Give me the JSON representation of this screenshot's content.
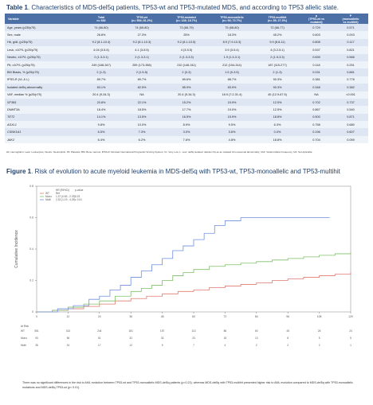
{
  "table1": {
    "caption_label": "Table 1",
    "caption_text": ". Characteristics of MDS-del5q patients, TP53-wt and TP53-mutated MDS, and according to TP53 allelic state.",
    "headers": [
      "Variable",
      "Total\nn= 682",
      "TP53-wt\n(n= 554; 81.2%)",
      "TP53-mutated\n(n= 128; 18.7%)",
      "TP53-monoallelic\n(n= 93; 72.7%)",
      "TP53-multihit\n(n= 35; 27.3%)",
      "p\n(TP53-wt vs\nmutated)",
      "P\n(monoallelic\nvs multihit)"
    ],
    "rows": [
      [
        "Age, years (p25/p75)",
        "74 (66-80)",
        "74 (65-80)",
        "73 (66-79)",
        "75 (68-80)",
        "72 (66-77)",
        "0.729",
        "0.571"
      ],
      [
        "Sex, male",
        "26.8%",
        "27.3%",
        "25%",
        "18.3%",
        "45.2%",
        "0.603",
        "0.003"
      ],
      [
        "Hb, g/dL (p25/p75)",
        "9.2 (8.1-10.4)",
        "9.2 (8.1-10.3)",
        "9.2 (8.1-10.5)",
        "8.9 (7.9-10.3)",
        "9.9 (8.8-11)",
        "0.808",
        "0.117"
      ],
      [
        "Leuk, x10⁹/L (p25/p75)",
        "4.04 (3.5-5)",
        "4.1 (3-5.5)",
        "4 (3-5.5)",
        "3.9 (3-5.4)",
        "4 (3.2-5.1)",
        "0.537",
        "0.821"
      ],
      [
        "Neutro, x10⁹/L (p25/p75)",
        "2 (1.3-3.1)",
        "2 (1.3-3.1)",
        "2 (1.3-3.3)",
        "1.9 (1.3-3.1)",
        "2 (1.5-3.3)",
        "0.839",
        "0.566"
      ],
      [
        "Plt, x10⁹/L (p25/p75)",
        "249 (168-347)",
        "259 (173-356)",
        "210 (146-311)",
        "212 (154-314)",
        "187 (115-277)",
        "0.118",
        "0.251"
      ],
      [
        "BM Blasts, % (p25/p75)",
        "2 (1-3)",
        "2 (1.5-5)",
        "2 (0-3)",
        "1.5 (0-3.5)",
        "2 (1-3)",
        "0.031",
        "0.881"
      ],
      [
        "IPSS-R (VL & L)",
        "89.7%",
        "89.7%",
        "89.6%",
        "88.7%",
        "90.3%",
        "0.381",
        "0.778"
      ],
      [
        "Isolated del5q abnormality",
        "83.1%",
        "82.5%",
        "85.9%",
        "83.9%",
        "90.3%",
        "0.348",
        "0.382"
      ],
      [
        "VAF, median % (p25/p75)",
        "20.4 (9-34.3)",
        "NA",
        "20.4 (9-34.3)",
        "18.9 (7.2-31.4)",
        "40 (12.9-67.5)",
        "NA",
        "<0.001"
      ],
      [
        "SF3B1",
        "20.8%",
        "22.1%",
        "15.2%",
        "15.9%",
        "12.5%",
        "0.702",
        "0.737"
      ],
      [
        "DNMT3A",
        "18.4%",
        "18.5%",
        "17.7%",
        "19.0%",
        "12.5%",
        "0.867",
        "0.540"
      ],
      [
        "TET2",
        "14.1%",
        "13.5%",
        "16.5%",
        "15.9%",
        "18.8%",
        "0.500",
        "0.871"
      ],
      [
        "ASXL1",
        "9.8%",
        "10.0%",
        "8.9%",
        "9.5%",
        "6.3%",
        "0.758",
        "0.680"
      ],
      [
        "CSNK1A1",
        "6.5%",
        "7.3%",
        "3.0%",
        "3.6%",
        "0.0%",
        "0.196",
        "0.607"
      ],
      [
        "JAK2",
        "6.4%",
        "6.2%",
        "7.6%",
        "4.8%",
        "18.8%",
        "0.704",
        "0.059"
      ]
    ],
    "gene_rows_from": 10,
    "footnote": "Hb, Hemoglobin; Leuk: Leukocytes; Neutro: Neutrophils; Plt: Platelets; BM: Bone marrow; IPSS-R: Revised International Prognostic Scoring System; VL: Very Low; L: Low; del5q isolated: deletion 5q as an isolated chromosomal abnormality; VAF: Variant Allele Frequency; NA: Not Aplicable."
  },
  "figure1": {
    "caption_label": "Figure 1",
    "caption_text": ". Risk of evolution to acute myeloid leukemia in MDS-del5q with TP53-wt, TP53-monoallelic and TP53-multihit",
    "legend_header": [
      "HR (95%CI)",
      "p-value"
    ],
    "note": "There was no significant differences in the risk to AML evolution between TP53-wt and TP53-monoallelic MDS-del5q patients (p=0.23), whereas MDS-del5q with TP53-multihit presented higher risk to AML evolution compared to MDS-del5q with TP53-monoallelic mutations and MDS-del5q TP53-wt (p< 0.01)."
  },
  "chart_data": {
    "type": "line",
    "title": "",
    "xlabel": "",
    "ylabel": "Cumulative Incidence",
    "xlim": [
      0,
      120
    ],
    "ylim": [
      0,
      0.8
    ],
    "x_ticks": [
      0,
      12,
      24,
      36,
      48,
      60,
      72,
      84,
      96,
      108,
      120
    ],
    "y_ticks": [
      0,
      0.2,
      0.4,
      0.6,
      0.8
    ],
    "grid": false,
    "legend_position": "top-left",
    "colors": {
      "wt": "#e07a70",
      "mono": "#7fbf6a",
      "multi": "#6f8fe0"
    },
    "series": [
      {
        "name": "WT",
        "hr": "Ref",
        "p": "",
        "color": "#e07a70",
        "points": [
          [
            0,
            0
          ],
          [
            6,
            0.01
          ],
          [
            12,
            0.02
          ],
          [
            18,
            0.035
          ],
          [
            24,
            0.05
          ],
          [
            30,
            0.07
          ],
          [
            36,
            0.085
          ],
          [
            42,
            0.1
          ],
          [
            48,
            0.115
          ],
          [
            54,
            0.13
          ],
          [
            60,
            0.14
          ],
          [
            66,
            0.155
          ],
          [
            72,
            0.165
          ],
          [
            78,
            0.175
          ],
          [
            84,
            0.185
          ],
          [
            90,
            0.2
          ],
          [
            96,
            0.21
          ],
          [
            102,
            0.22
          ],
          [
            108,
            0.23
          ],
          [
            114,
            0.24
          ],
          [
            120,
            0.25
          ]
        ]
      },
      {
        "name": "Mono",
        "hr": "1.37 (0.83 - 2.29)",
        "p": "0.23",
        "color": "#7fbf6a",
        "points": [
          [
            0,
            0
          ],
          [
            6,
            0.01
          ],
          [
            12,
            0.03
          ],
          [
            18,
            0.05
          ],
          [
            24,
            0.07
          ],
          [
            30,
            0.1
          ],
          [
            36,
            0.13
          ],
          [
            40,
            0.15
          ],
          [
            44,
            0.17
          ],
          [
            48,
            0.2
          ],
          [
            52,
            0.23
          ],
          [
            56,
            0.25
          ],
          [
            60,
            0.27
          ],
          [
            66,
            0.29
          ],
          [
            72,
            0.3
          ],
          [
            78,
            0.31
          ],
          [
            84,
            0.32
          ],
          [
            90,
            0.33
          ],
          [
            96,
            0.34
          ],
          [
            102,
            0.35
          ],
          [
            108,
            0.36
          ],
          [
            114,
            0.37
          ],
          [
            120,
            0.38
          ]
        ]
      },
      {
        "name": "Multi",
        "hr": "2.33 (1.19 - 4.25)",
        "p": "< 0.01",
        "color": "#6f8fe0",
        "points": [
          [
            0,
            0
          ],
          [
            8,
            0.02
          ],
          [
            14,
            0.04
          ],
          [
            20,
            0.08
          ],
          [
            24,
            0.1
          ],
          [
            28,
            0.14
          ],
          [
            32,
            0.17
          ],
          [
            36,
            0.22
          ],
          [
            40,
            0.26
          ],
          [
            44,
            0.3
          ],
          [
            48,
            0.34
          ],
          [
            52,
            0.39
          ],
          [
            56,
            0.42
          ],
          [
            60,
            0.46
          ],
          [
            64,
            0.5
          ],
          [
            68,
            0.55
          ],
          [
            72,
            0.58
          ],
          [
            78,
            0.6
          ],
          [
            84,
            0.6
          ],
          [
            96,
            0.6
          ],
          [
            108,
            0.6
          ],
          [
            112,
            0.6
          ]
        ]
      }
    ],
    "risk_table": {
      "label": "At Risk",
      "rows": [
        [
          "551",
          "313",
          "244",
          "181",
          "157",
          "113",
          "86",
          "60",
          "45",
          "26",
          "24"
        ],
        [
          "93",
          "56",
          "51",
          "32",
          "32",
          "23",
          "15",
          "13",
          "8",
          "5",
          "5"
        ],
        [
          "35",
          "24",
          "17",
          "12",
          "9",
          "7",
          "4",
          "2",
          "2",
          "2",
          "1"
        ]
      ]
    }
  }
}
